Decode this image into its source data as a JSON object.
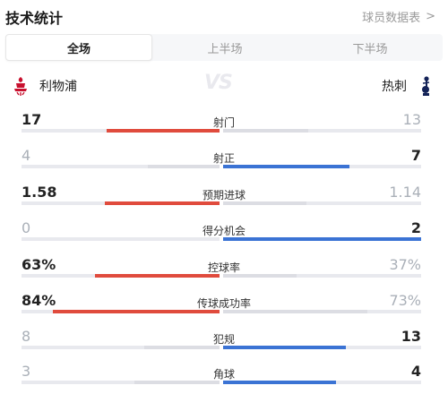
{
  "header": {
    "title": "技术统计",
    "more_link": "球员数据表",
    "more_chevron": ">"
  },
  "tabs": [
    {
      "label": "全场",
      "active": true
    },
    {
      "label": "上半场",
      "active": false
    },
    {
      "label": "下半场",
      "active": false
    }
  ],
  "teams": {
    "home": {
      "name": "利物浦",
      "crest_icon": "liverpool-crest-icon"
    },
    "away": {
      "name": "热刺",
      "crest_icon": "tottenham-crest-icon"
    },
    "vs_text": "VS"
  },
  "colors": {
    "home": "#e04b3d",
    "away": "#3b73d4",
    "track": "#e8e9ee",
    "loser_bar": "#dcdde3"
  },
  "stats": [
    {
      "label": "射门",
      "home": "17",
      "away": "13",
      "home_ratio": 0.57,
      "away_ratio": 0.43
    },
    {
      "label": "射正",
      "home": "4",
      "away": "7",
      "home_ratio": 0.36,
      "away_ratio": 0.64
    },
    {
      "label": "预期进球",
      "home": "1.58",
      "away": "1.14",
      "home_ratio": 0.58,
      "away_ratio": 0.42
    },
    {
      "label": "得分机会",
      "home": "0",
      "away": "2",
      "home_ratio": 0.0,
      "away_ratio": 1.0
    },
    {
      "label": "控球率",
      "home": "63%",
      "away": "37%",
      "home_ratio": 0.63,
      "away_ratio": 0.37
    },
    {
      "label": "传球成功率",
      "home": "84%",
      "away": "73%",
      "home_ratio": 0.84,
      "away_ratio": 0.73
    },
    {
      "label": "犯规",
      "home": "8",
      "away": "13",
      "home_ratio": 0.38,
      "away_ratio": 0.62
    },
    {
      "label": "角球",
      "home": "3",
      "away": "4",
      "home_ratio": 0.43,
      "away_ratio": 0.57
    }
  ]
}
